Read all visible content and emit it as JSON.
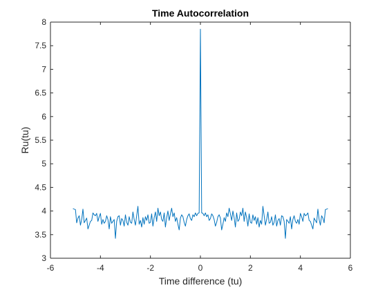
{
  "chart_data": {
    "type": "line",
    "title": "Time Autocorrelation",
    "xlabel": "Time difference (tu)",
    "ylabel": "Ru(tu)",
    "xlim": [
      -6,
      6
    ],
    "ylim": [
      3,
      8
    ],
    "xticks": [
      -6,
      -4,
      -2,
      0,
      2,
      4,
      6
    ],
    "yticks": [
      3,
      3.5,
      4,
      4.5,
      5,
      5.5,
      6,
      6.5,
      7,
      7.5,
      8
    ],
    "grid": false,
    "series_color": "#0072bd",
    "series": [
      {
        "name": "Ru",
        "x": [
          -5.1,
          -5.0,
          -4.95,
          -4.9,
          -4.85,
          -4.8,
          -4.75,
          -4.7,
          -4.65,
          -4.6,
          -4.55,
          -4.5,
          -4.45,
          -4.4,
          -4.35,
          -4.3,
          -4.25,
          -4.2,
          -4.15,
          -4.1,
          -4.05,
          -4.0,
          -3.95,
          -3.9,
          -3.85,
          -3.8,
          -3.75,
          -3.7,
          -3.65,
          -3.6,
          -3.55,
          -3.5,
          -3.45,
          -3.4,
          -3.35,
          -3.3,
          -3.25,
          -3.2,
          -3.15,
          -3.1,
          -3.05,
          -3.0,
          -2.95,
          -2.9,
          -2.85,
          -2.8,
          -2.75,
          -2.7,
          -2.65,
          -2.6,
          -2.55,
          -2.5,
          -2.45,
          -2.4,
          -2.35,
          -2.3,
          -2.25,
          -2.2,
          -2.15,
          -2.1,
          -2.05,
          -2.0,
          -1.95,
          -1.9,
          -1.85,
          -1.8,
          -1.75,
          -1.7,
          -1.65,
          -1.6,
          -1.55,
          -1.5,
          -1.45,
          -1.4,
          -1.35,
          -1.3,
          -1.25,
          -1.2,
          -1.15,
          -1.1,
          -1.05,
          -1.0,
          -0.95,
          -0.9,
          -0.85,
          -0.8,
          -0.75,
          -0.7,
          -0.65,
          -0.6,
          -0.55,
          -0.5,
          -0.45,
          -0.4,
          -0.35,
          -0.3,
          -0.25,
          -0.2,
          -0.15,
          -0.1,
          -0.05,
          0.0,
          0.05,
          0.1,
          0.15,
          0.2,
          0.25,
          0.3,
          0.35,
          0.4,
          0.45,
          0.5,
          0.55,
          0.6,
          0.65,
          0.7,
          0.75,
          0.8,
          0.85,
          0.9,
          0.95,
          1.0,
          1.05,
          1.1,
          1.15,
          1.2,
          1.25,
          1.3,
          1.35,
          1.4,
          1.45,
          1.5,
          1.55,
          1.6,
          1.65,
          1.7,
          1.75,
          1.8,
          1.85,
          1.9,
          1.95,
          2.0,
          2.05,
          2.1,
          2.15,
          2.2,
          2.25,
          2.3,
          2.35,
          2.4,
          2.45,
          2.5,
          2.55,
          2.6,
          2.65,
          2.7,
          2.75,
          2.8,
          2.85,
          2.9,
          2.95,
          3.0,
          3.05,
          3.1,
          3.15,
          3.2,
          3.25,
          3.3,
          3.35,
          3.4,
          3.45,
          3.5,
          3.55,
          3.6,
          3.65,
          3.7,
          3.75,
          3.8,
          3.85,
          3.9,
          3.95,
          4.0,
          4.05,
          4.1,
          4.15,
          4.2,
          4.25,
          4.3,
          4.35,
          4.4,
          4.45,
          4.5,
          4.55,
          4.6,
          4.65,
          4.7,
          4.75,
          4.8,
          4.85,
          4.9,
          4.95,
          5.0,
          5.1
        ],
        "values": [
          4.05,
          4.03,
          3.75,
          3.85,
          3.9,
          3.7,
          3.82,
          4.04,
          3.75,
          3.8,
          3.85,
          3.62,
          3.7,
          3.78,
          3.8,
          3.96,
          3.92,
          3.9,
          3.95,
          3.78,
          3.88,
          3.95,
          3.72,
          3.82,
          3.74,
          3.78,
          3.9,
          3.82,
          3.62,
          3.88,
          3.74,
          3.78,
          3.82,
          3.42,
          3.78,
          3.88,
          3.9,
          3.7,
          3.84,
          3.8,
          3.68,
          3.92,
          3.76,
          3.7,
          3.88,
          3.76,
          3.74,
          3.98,
          3.82,
          3.7,
          3.9,
          4.1,
          3.72,
          3.8,
          3.66,
          3.86,
          3.72,
          3.88,
          3.8,
          3.92,
          3.74,
          3.76,
          3.94,
          3.68,
          3.86,
          3.98,
          3.78,
          4.06,
          3.9,
          3.98,
          3.82,
          3.78,
          3.96,
          3.66,
          3.86,
          4.0,
          3.8,
          3.94,
          4.06,
          3.88,
          3.96,
          3.78,
          3.86,
          3.72,
          3.6,
          3.85,
          3.92,
          3.88,
          3.76,
          3.68,
          3.82,
          3.9,
          3.94,
          3.84,
          3.8,
          3.92,
          3.88,
          3.96,
          3.9,
          3.95,
          3.96,
          7.85,
          3.96,
          3.95,
          3.9,
          3.96,
          3.88,
          3.92,
          3.8,
          3.84,
          3.94,
          3.9,
          3.82,
          3.68,
          3.76,
          3.88,
          3.92,
          3.85,
          3.6,
          3.72,
          3.86,
          3.78,
          3.96,
          3.88,
          4.06,
          3.94,
          3.8,
          4.0,
          3.86,
          3.66,
          3.96,
          3.78,
          3.82,
          3.98,
          3.9,
          4.06,
          3.78,
          3.98,
          3.86,
          3.68,
          3.94,
          3.76,
          3.74,
          3.92,
          3.8,
          3.88,
          3.72,
          3.86,
          3.66,
          3.8,
          3.72,
          4.1,
          3.9,
          3.7,
          3.82,
          3.98,
          3.74,
          3.76,
          3.88,
          3.7,
          3.76,
          3.92,
          3.68,
          3.8,
          3.84,
          3.7,
          3.9,
          3.88,
          3.78,
          3.42,
          3.82,
          3.78,
          3.74,
          3.88,
          3.62,
          3.82,
          3.9,
          3.78,
          3.74,
          3.82,
          3.72,
          3.95,
          3.88,
          3.78,
          3.95,
          3.9,
          3.92,
          3.96,
          3.8,
          3.78,
          3.7,
          3.62,
          3.85,
          3.8,
          3.75,
          4.04,
          3.82,
          3.7,
          3.9,
          3.85,
          3.75,
          4.03,
          4.05
        ]
      }
    ]
  }
}
